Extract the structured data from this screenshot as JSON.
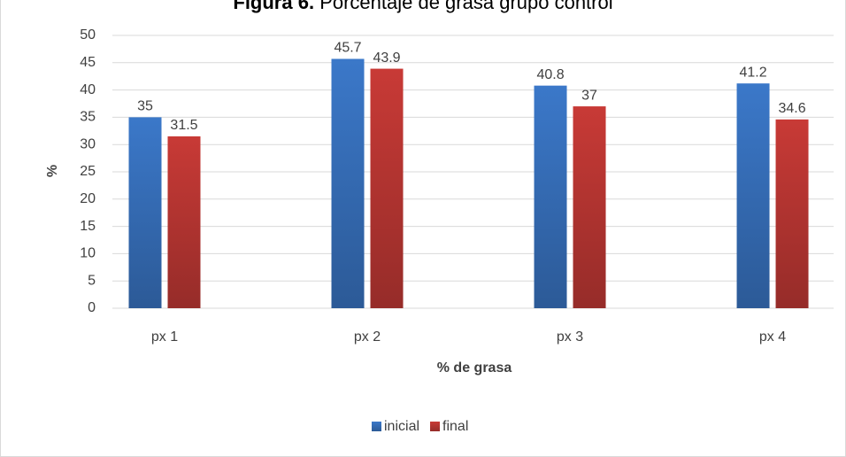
{
  "chart_data": {
    "type": "bar",
    "title": {
      "prefix": "Figura 6.",
      "text": "Porcentaje de grasa grupo control"
    },
    "x_label": "% de grasa",
    "y_label": "%",
    "categories": [
      "px 1",
      "px 2",
      "px 3",
      "px 4"
    ],
    "series": [
      {
        "name": "inicial",
        "color": "#3b78c9",
        "values": [
          35,
          45.7,
          40.8,
          41.2
        ]
      },
      {
        "name": "final",
        "color": "#c83a36",
        "values": [
          31.5,
          43.9,
          37,
          34.6
        ]
      }
    ],
    "ylim": [
      0,
      50
    ],
    "yticks": [
      0,
      5,
      10,
      15,
      20,
      25,
      30,
      35,
      40,
      45,
      50
    ],
    "grid": true,
    "legend": "bottom"
  }
}
